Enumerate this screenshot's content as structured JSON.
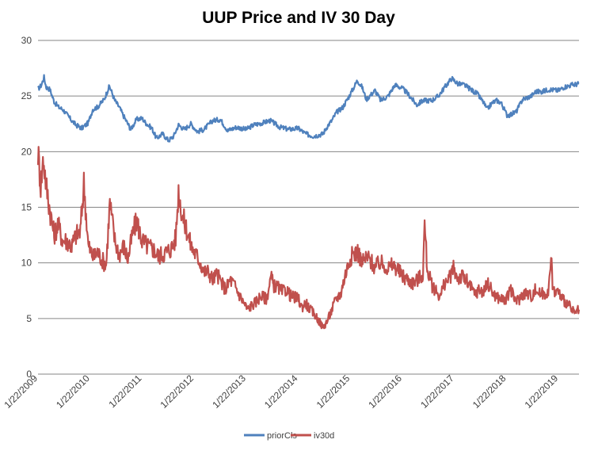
{
  "chart_data": {
    "type": "line",
    "title": "UUP Price and IV 30 Day",
    "xlabel": "",
    "ylabel": "",
    "ylim": [
      0,
      30
    ],
    "yticks": [
      0,
      5,
      10,
      15,
      20,
      25,
      30
    ],
    "xlim": [
      "2009-01-22",
      "2019-06-15"
    ],
    "xticks": [
      {
        "label": "1/22/2009",
        "date": "2009-01-22"
      },
      {
        "label": "1/22/2010",
        "date": "2010-01-22"
      },
      {
        "label": "1/22/2011",
        "date": "2011-01-22"
      },
      {
        "label": "1/22/2012",
        "date": "2012-01-22"
      },
      {
        "label": "1/22/2013",
        "date": "2013-01-22"
      },
      {
        "label": "1/22/2014",
        "date": "2014-01-22"
      },
      {
        "label": "1/22/2015",
        "date": "2015-01-22"
      },
      {
        "label": "1/22/2016",
        "date": "2016-01-22"
      },
      {
        "label": "1/22/2017",
        "date": "2017-01-22"
      },
      {
        "label": "1/22/2018",
        "date": "2018-01-22"
      },
      {
        "label": "1/22/2019",
        "date": "2019-01-22"
      }
    ],
    "grid": true,
    "legend": "bottom",
    "series": [
      {
        "name": "priorCls",
        "color": "#4f81bd",
        "points": [
          [
            "2009-01-22",
            25.6
          ],
          [
            "2009-02-15",
            26.0
          ],
          [
            "2009-03-05",
            26.7
          ],
          [
            "2009-03-20",
            25.8
          ],
          [
            "2009-04-15",
            25.6
          ],
          [
            "2009-05-15",
            24.5
          ],
          [
            "2009-06-15",
            24.0
          ],
          [
            "2009-07-15",
            23.8
          ],
          [
            "2009-08-15",
            23.3
          ],
          [
            "2009-09-15",
            22.8
          ],
          [
            "2009-10-15",
            22.4
          ],
          [
            "2009-11-25",
            22.1
          ],
          [
            "2010-01-10",
            22.6
          ],
          [
            "2010-02-10",
            23.8
          ],
          [
            "2010-03-15",
            24.0
          ],
          [
            "2010-05-01",
            24.7
          ],
          [
            "2010-06-07",
            25.9
          ],
          [
            "2010-07-15",
            24.6
          ],
          [
            "2010-08-15",
            24.0
          ],
          [
            "2010-09-15",
            23.2
          ],
          [
            "2010-11-04",
            22.0
          ],
          [
            "2010-12-15",
            22.9
          ],
          [
            "2011-01-22",
            23.0
          ],
          [
            "2011-02-15",
            22.6
          ],
          [
            "2011-04-01",
            22.1
          ],
          [
            "2011-05-03",
            21.2
          ],
          [
            "2011-06-15",
            21.6
          ],
          [
            "2011-07-27",
            21.0
          ],
          [
            "2011-09-01",
            21.4
          ],
          [
            "2011-10-05",
            22.4
          ],
          [
            "2011-11-15",
            22.0
          ],
          [
            "2011-12-30",
            22.5
          ],
          [
            "2012-02-15",
            21.8
          ],
          [
            "2012-04-01",
            22.0
          ],
          [
            "2012-06-01",
            22.8
          ],
          [
            "2012-07-24",
            22.9
          ],
          [
            "2012-09-14",
            21.9
          ],
          [
            "2012-11-15",
            22.2
          ],
          [
            "2013-01-22",
            22.0
          ],
          [
            "2013-03-15",
            22.4
          ],
          [
            "2013-05-20",
            22.6
          ],
          [
            "2013-07-09",
            22.8
          ],
          [
            "2013-09-15",
            22.2
          ],
          [
            "2013-11-15",
            22.0
          ],
          [
            "2014-01-22",
            22.1
          ],
          [
            "2014-03-15",
            21.6
          ],
          [
            "2014-05-06",
            21.4
          ],
          [
            "2014-06-15",
            21.5
          ],
          [
            "2014-07-15",
            21.6
          ],
          [
            "2014-08-15",
            22.3
          ],
          [
            "2014-09-15",
            22.8
          ],
          [
            "2014-10-15",
            23.5
          ],
          [
            "2014-12-01",
            24.0
          ],
          [
            "2015-01-15",
            25.0
          ],
          [
            "2015-03-13",
            26.4
          ],
          [
            "2015-04-15",
            25.8
          ],
          [
            "2015-05-15",
            24.7
          ],
          [
            "2015-07-15",
            25.5
          ],
          [
            "2015-08-24",
            24.6
          ],
          [
            "2015-10-15",
            25.0
          ],
          [
            "2015-12-01",
            26.0
          ],
          [
            "2016-01-22",
            25.7
          ],
          [
            "2016-03-01",
            25.2
          ],
          [
            "2016-05-03",
            24.2
          ],
          [
            "2016-06-15",
            24.6
          ],
          [
            "2016-08-15",
            24.6
          ],
          [
            "2016-10-01",
            25.0
          ],
          [
            "2016-11-15",
            25.8
          ],
          [
            "2017-01-03",
            26.6
          ],
          [
            "2017-02-15",
            26.1
          ],
          [
            "2017-04-01",
            26.0
          ],
          [
            "2017-05-15",
            25.6
          ],
          [
            "2017-07-01",
            25.2
          ],
          [
            "2017-08-15",
            24.4
          ],
          [
            "2017-09-08",
            23.8
          ],
          [
            "2017-10-15",
            24.4
          ],
          [
            "2017-11-15",
            24.6
          ],
          [
            "2017-12-15",
            24.4
          ],
          [
            "2018-01-25",
            23.3
          ],
          [
            "2018-02-15",
            23.3
          ],
          [
            "2018-04-01",
            23.6
          ],
          [
            "2018-05-15",
            24.7
          ],
          [
            "2018-07-15",
            25.0
          ],
          [
            "2018-08-15",
            25.4
          ],
          [
            "2018-10-01",
            25.4
          ],
          [
            "2018-11-15",
            25.6
          ],
          [
            "2019-01-22",
            25.5
          ],
          [
            "2019-03-01",
            25.8
          ],
          [
            "2019-04-25",
            26.0
          ],
          [
            "2019-06-15",
            26.1
          ]
        ]
      },
      {
        "name": "iv30d",
        "color": "#c0504d",
        "points": [
          [
            "2009-01-22",
            20.0
          ],
          [
            "2009-02-10",
            17.0
          ],
          [
            "2009-03-01",
            19.5
          ],
          [
            "2009-03-20",
            17.0
          ],
          [
            "2009-04-15",
            14.8
          ],
          [
            "2009-05-15",
            12.5
          ],
          [
            "2009-06-10",
            13.5
          ],
          [
            "2009-07-15",
            12.0
          ],
          [
            "2009-08-15",
            12.0
          ],
          [
            "2009-09-15",
            11.5
          ],
          [
            "2009-10-15",
            12.5
          ],
          [
            "2009-11-15",
            12.8
          ],
          [
            "2009-12-10",
            17.2
          ],
          [
            "2010-01-10",
            11.5
          ],
          [
            "2010-02-15",
            10.5
          ],
          [
            "2010-03-15",
            11.0
          ],
          [
            "2010-04-15",
            10.3
          ],
          [
            "2010-05-15",
            9.8
          ],
          [
            "2010-06-10",
            15.4
          ],
          [
            "2010-07-15",
            12.0
          ],
          [
            "2010-08-15",
            10.8
          ],
          [
            "2010-09-15",
            11.5
          ],
          [
            "2010-10-15",
            10.3
          ],
          [
            "2010-11-15",
            12.5
          ],
          [
            "2010-12-15",
            13.8
          ],
          [
            "2011-01-22",
            12.0
          ],
          [
            "2011-03-01",
            11.5
          ],
          [
            "2011-04-15",
            11.2
          ],
          [
            "2011-05-15",
            10.6
          ],
          [
            "2011-06-15",
            10.8
          ],
          [
            "2011-07-15",
            11.0
          ],
          [
            "2011-08-15",
            11.3
          ],
          [
            "2011-09-15",
            12.2
          ],
          [
            "2011-10-05",
            16.5
          ],
          [
            "2011-11-01",
            14.2
          ],
          [
            "2011-12-01",
            13.0
          ],
          [
            "2012-01-01",
            11.5
          ],
          [
            "2012-02-01",
            10.8
          ],
          [
            "2012-03-01",
            10.2
          ],
          [
            "2012-04-01",
            9.2
          ],
          [
            "2012-05-01",
            9.2
          ],
          [
            "2012-06-01",
            8.5
          ],
          [
            "2012-07-01",
            9.0
          ],
          [
            "2012-08-01",
            8.2
          ],
          [
            "2012-09-01",
            7.6
          ],
          [
            "2012-10-01",
            8.5
          ],
          [
            "2012-11-01",
            8.0
          ],
          [
            "2012-12-01",
            7.2
          ],
          [
            "2013-01-01",
            6.5
          ],
          [
            "2013-02-01",
            5.8
          ],
          [
            "2013-03-01",
            6.2
          ],
          [
            "2013-04-01",
            6.5
          ],
          [
            "2013-05-01",
            7.0
          ],
          [
            "2013-06-15",
            6.8
          ],
          [
            "2013-07-15",
            8.8
          ],
          [
            "2013-08-01",
            8.0
          ],
          [
            "2013-09-01",
            7.8
          ],
          [
            "2013-10-01",
            7.4
          ],
          [
            "2013-11-01",
            7.6
          ],
          [
            "2013-12-01",
            7.0
          ],
          [
            "2014-01-22",
            6.8
          ],
          [
            "2014-02-15",
            6.0
          ],
          [
            "2014-03-15",
            6.4
          ],
          [
            "2014-04-15",
            5.8
          ],
          [
            "2014-05-15",
            5.4
          ],
          [
            "2014-06-15",
            4.8
          ],
          [
            "2014-07-15",
            4.2
          ],
          [
            "2014-08-15",
            4.8
          ],
          [
            "2014-09-15",
            5.8
          ],
          [
            "2014-10-15",
            6.8
          ],
          [
            "2014-11-15",
            7.2
          ],
          [
            "2014-12-15",
            8.8
          ],
          [
            "2015-01-22",
            10.5
          ],
          [
            "2015-02-15",
            10.8
          ],
          [
            "2015-03-15",
            11.0
          ],
          [
            "2015-04-15",
            10.0
          ],
          [
            "2015-05-15",
            10.5
          ],
          [
            "2015-06-15",
            10.2
          ],
          [
            "2015-07-15",
            9.5
          ],
          [
            "2015-08-15",
            10.0
          ],
          [
            "2015-09-15",
            9.8
          ],
          [
            "2015-10-15",
            9.5
          ],
          [
            "2015-11-15",
            9.8
          ],
          [
            "2015-12-15",
            9.5
          ],
          [
            "2016-01-22",
            8.8
          ],
          [
            "2016-03-01",
            8.5
          ],
          [
            "2016-04-01",
            8.2
          ],
          [
            "2016-05-01",
            8.4
          ],
          [
            "2016-06-15",
            9.0
          ],
          [
            "2016-06-27",
            13.5
          ],
          [
            "2016-07-15",
            9.5
          ],
          [
            "2016-08-15",
            8.0
          ],
          [
            "2016-09-15",
            7.5
          ],
          [
            "2016-10-15",
            7.0
          ],
          [
            "2016-11-15",
            8.2
          ],
          [
            "2016-12-15",
            8.5
          ],
          [
            "2017-01-15",
            9.5
          ],
          [
            "2017-02-15",
            8.6
          ],
          [
            "2017-03-15",
            8.8
          ],
          [
            "2017-04-15",
            8.4
          ],
          [
            "2017-05-15",
            7.8
          ],
          [
            "2017-06-15",
            7.2
          ],
          [
            "2017-07-15",
            7.6
          ],
          [
            "2017-08-15",
            7.4
          ],
          [
            "2017-09-15",
            8.2
          ],
          [
            "2017-10-15",
            7.4
          ],
          [
            "2017-11-15",
            6.9
          ],
          [
            "2017-12-15",
            6.8
          ],
          [
            "2018-01-22",
            6.6
          ],
          [
            "2018-02-15",
            7.8
          ],
          [
            "2018-03-15",
            6.8
          ],
          [
            "2018-04-15",
            6.6
          ],
          [
            "2018-05-15",
            7.2
          ],
          [
            "2018-06-15",
            7.3
          ],
          [
            "2018-07-15",
            7.0
          ],
          [
            "2018-08-15",
            7.6
          ],
          [
            "2018-09-15",
            7.2
          ],
          [
            "2018-10-15",
            7.2
          ],
          [
            "2018-11-15",
            7.6
          ],
          [
            "2018-12-01",
            10.4
          ],
          [
            "2018-12-15",
            7.5
          ],
          [
            "2019-01-22",
            7.4
          ],
          [
            "2019-02-15",
            6.8
          ],
          [
            "2019-03-15",
            6.5
          ],
          [
            "2019-04-15",
            6.0
          ],
          [
            "2019-05-15",
            5.4
          ],
          [
            "2019-06-15",
            5.8
          ]
        ]
      }
    ]
  }
}
